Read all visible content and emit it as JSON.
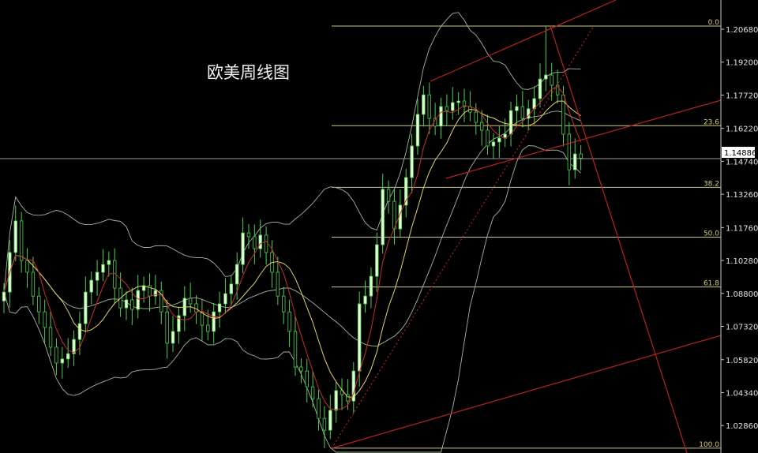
{
  "chart_data": {
    "type": "candlestick",
    "title": "欧美周线图",
    "current_price": "1.14886",
    "y_ticks": [
      "1.20680",
      "1.19200",
      "1.17720",
      "1.16220",
      "1.14740",
      "1.13260",
      "1.11760",
      "1.10280",
      "1.08800",
      "1.07320",
      "1.05820",
      "1.04340",
      "1.02860"
    ],
    "ylim": [
      1.017,
      1.219
    ],
    "closes": [
      1.0886,
      1.1064,
      1.1206,
      1.1028,
      1.0975,
      1.0868,
      1.0797,
      1.0727,
      1.0638,
      1.0567,
      1.0585,
      1.0609,
      1.0673,
      1.0744,
      1.0886,
      1.0939,
      1.0975,
      1.101,
      1.1028,
      1.0904,
      1.0815,
      1.0851,
      1.0808,
      1.0893,
      1.0915,
      1.0868,
      1.0893,
      1.0797,
      1.0656,
      1.0709,
      1.078,
      1.0858,
      1.0833,
      1.0797,
      1.0737,
      1.0709,
      1.0797,
      1.0833,
      1.0879,
      1.0922,
      1.101,
      1.1152,
      1.1135,
      1.1081,
      1.1142,
      1.1064,
      1.0975,
      1.0868,
      1.0797,
      1.0709,
      1.0549,
      1.0531,
      1.046,
      1.0407,
      1.0318,
      1.0265,
      1.0354,
      1.0443,
      1.0425,
      1.0396,
      1.0531,
      1.0833,
      1.0868,
      1.0957,
      1.1099,
      1.1348,
      1.1294,
      1.117,
      1.1277,
      1.1401,
      1.1543,
      1.1685,
      1.1773,
      1.1667,
      1.1632,
      1.172,
      1.1702,
      1.1738,
      1.1745,
      1.172,
      1.1695,
      1.1649,
      1.1614,
      1.1543,
      1.1561,
      1.1578,
      1.1596,
      1.1702,
      1.172,
      1.1667,
      1.171,
      1.1756,
      1.1844,
      1.1862,
      1.1816,
      1.1773,
      1.1596,
      1.1436,
      1.1507,
      1.14886
    ],
    "indicators": {
      "ma_fast": 5,
      "ma_slow": 10,
      "bollinger": {
        "period": 20,
        "deviations": 2
      }
    },
    "fibonacci": {
      "high": 1.2082,
      "low": 1.0184,
      "levels": [
        {
          "ratio": 0.0,
          "label": "0.0"
        },
        {
          "ratio": 0.236,
          "label": "23.6"
        },
        {
          "ratio": 0.382,
          "label": "38.2"
        },
        {
          "ratio": 0.5,
          "label": "50.0"
        },
        {
          "ratio": 0.618,
          "label": "61.8"
        },
        {
          "ratio": 1.0,
          "label": "100.0"
        }
      ]
    },
    "colors": {
      "background": "#000000",
      "candle_stroke": "#4fd04f",
      "candle_up_fill": "#e6ffd8",
      "ma_fast": "#c8302a",
      "ma_slow": "#e3d466",
      "bands": "#a3b89a",
      "fib": "#c9c98a",
      "fib_label": "#d8d070",
      "trendline": "#b8221e",
      "axis_text": "#e0e0e0"
    }
  }
}
